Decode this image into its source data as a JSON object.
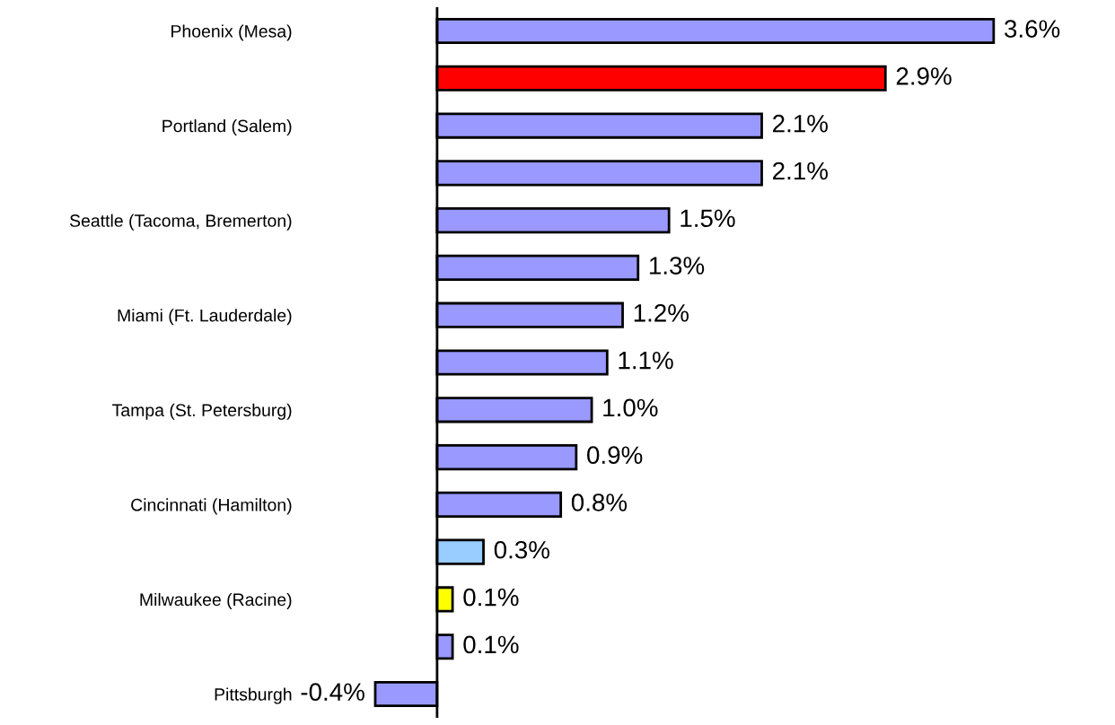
{
  "chart_data": {
    "type": "bar",
    "orientation": "horizontal",
    "categories": [
      "Phoenix (Mesa)",
      null,
      "Portland (Salem)",
      null,
      "Seattle (Tacoma, Bremerton)",
      null,
      "Miami (Ft. Lauderdale)",
      null,
      "Tampa (St. Petersburg)",
      null,
      "Cincinnati (Hamilton)",
      null,
      "Milwaukee (Racine)",
      null,
      "Pittsburgh"
    ],
    "values": [
      3.6,
      2.9,
      2.1,
      2.1,
      1.5,
      1.3,
      1.2,
      1.1,
      1.0,
      0.9,
      0.8,
      0.3,
      0.1,
      0.1,
      -0.4
    ],
    "colors": [
      "#9999ff",
      "#ff0000",
      "#9999ff",
      "#9999ff",
      "#9999ff",
      "#9999ff",
      "#9999ff",
      "#9999ff",
      "#9999ff",
      "#9999ff",
      "#9999ff",
      "#99ccff",
      "#ffff00",
      "#9999ff",
      "#9999ff"
    ],
    "value_labels": [
      "3.6%",
      "2.9%",
      "2.1%",
      "2.1%",
      "1.5%",
      "1.3%",
      "1.2%",
      "1.1%",
      "1.0%",
      "0.9%",
      "0.8%",
      "0.3%",
      "0.1%",
      "0.1%",
      "-0.4%"
    ],
    "grid": false,
    "legend": false
  }
}
